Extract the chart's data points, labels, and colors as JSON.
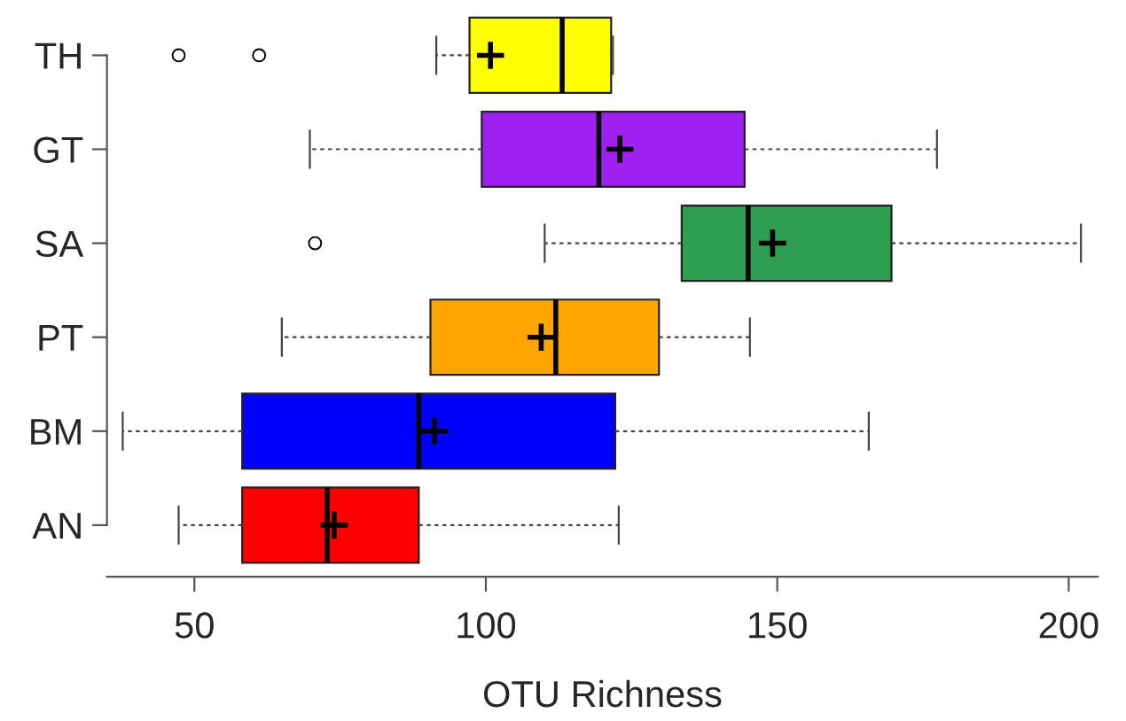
{
  "chart_data": {
    "type": "box",
    "orientation": "horizontal",
    "xlabel": "OTU Richness",
    "categories": [
      "TH",
      "GT",
      "SA",
      "PT",
      "BM",
      "AN"
    ],
    "colors": [
      "#ffff00",
      "#a020f0",
      "#2e9e50",
      "#ffa500",
      "#0000ff",
      "#ff0000"
    ],
    "boxes": [
      {
        "low": 91.5,
        "q1": 97.2,
        "median": 113.1,
        "q3": 121.5,
        "high": 121.8,
        "mean": 100.8,
        "outliers": [
          47.3,
          61.1
        ]
      },
      {
        "low": 69.8,
        "q1": 99.3,
        "median": 119.4,
        "q3": 144.4,
        "high": 177.4,
        "mean": 123.0
      },
      {
        "low": 110.1,
        "q1": 133.6,
        "median": 145.0,
        "q3": 169.6,
        "high": 202.1,
        "mean": 149.2,
        "outliers": [
          70.7
        ]
      },
      {
        "low": 65.0,
        "q1": 90.5,
        "median": 112.0,
        "q3": 129.7,
        "high": 145.3,
        "mean": 109.5
      },
      {
        "low": 37.7,
        "q1": 58.2,
        "median": 88.5,
        "q3": 122.2,
        "high": 165.7,
        "mean": 91.2
      },
      {
        "low": 47.3,
        "q1": 58.2,
        "median": 72.8,
        "q3": 88.5,
        "high": 122.8,
        "mean": 74.0
      }
    ],
    "xlim": [
      35,
      205
    ],
    "xticks": [
      50,
      100,
      150,
      200
    ],
    "grid": false,
    "legend": false
  }
}
